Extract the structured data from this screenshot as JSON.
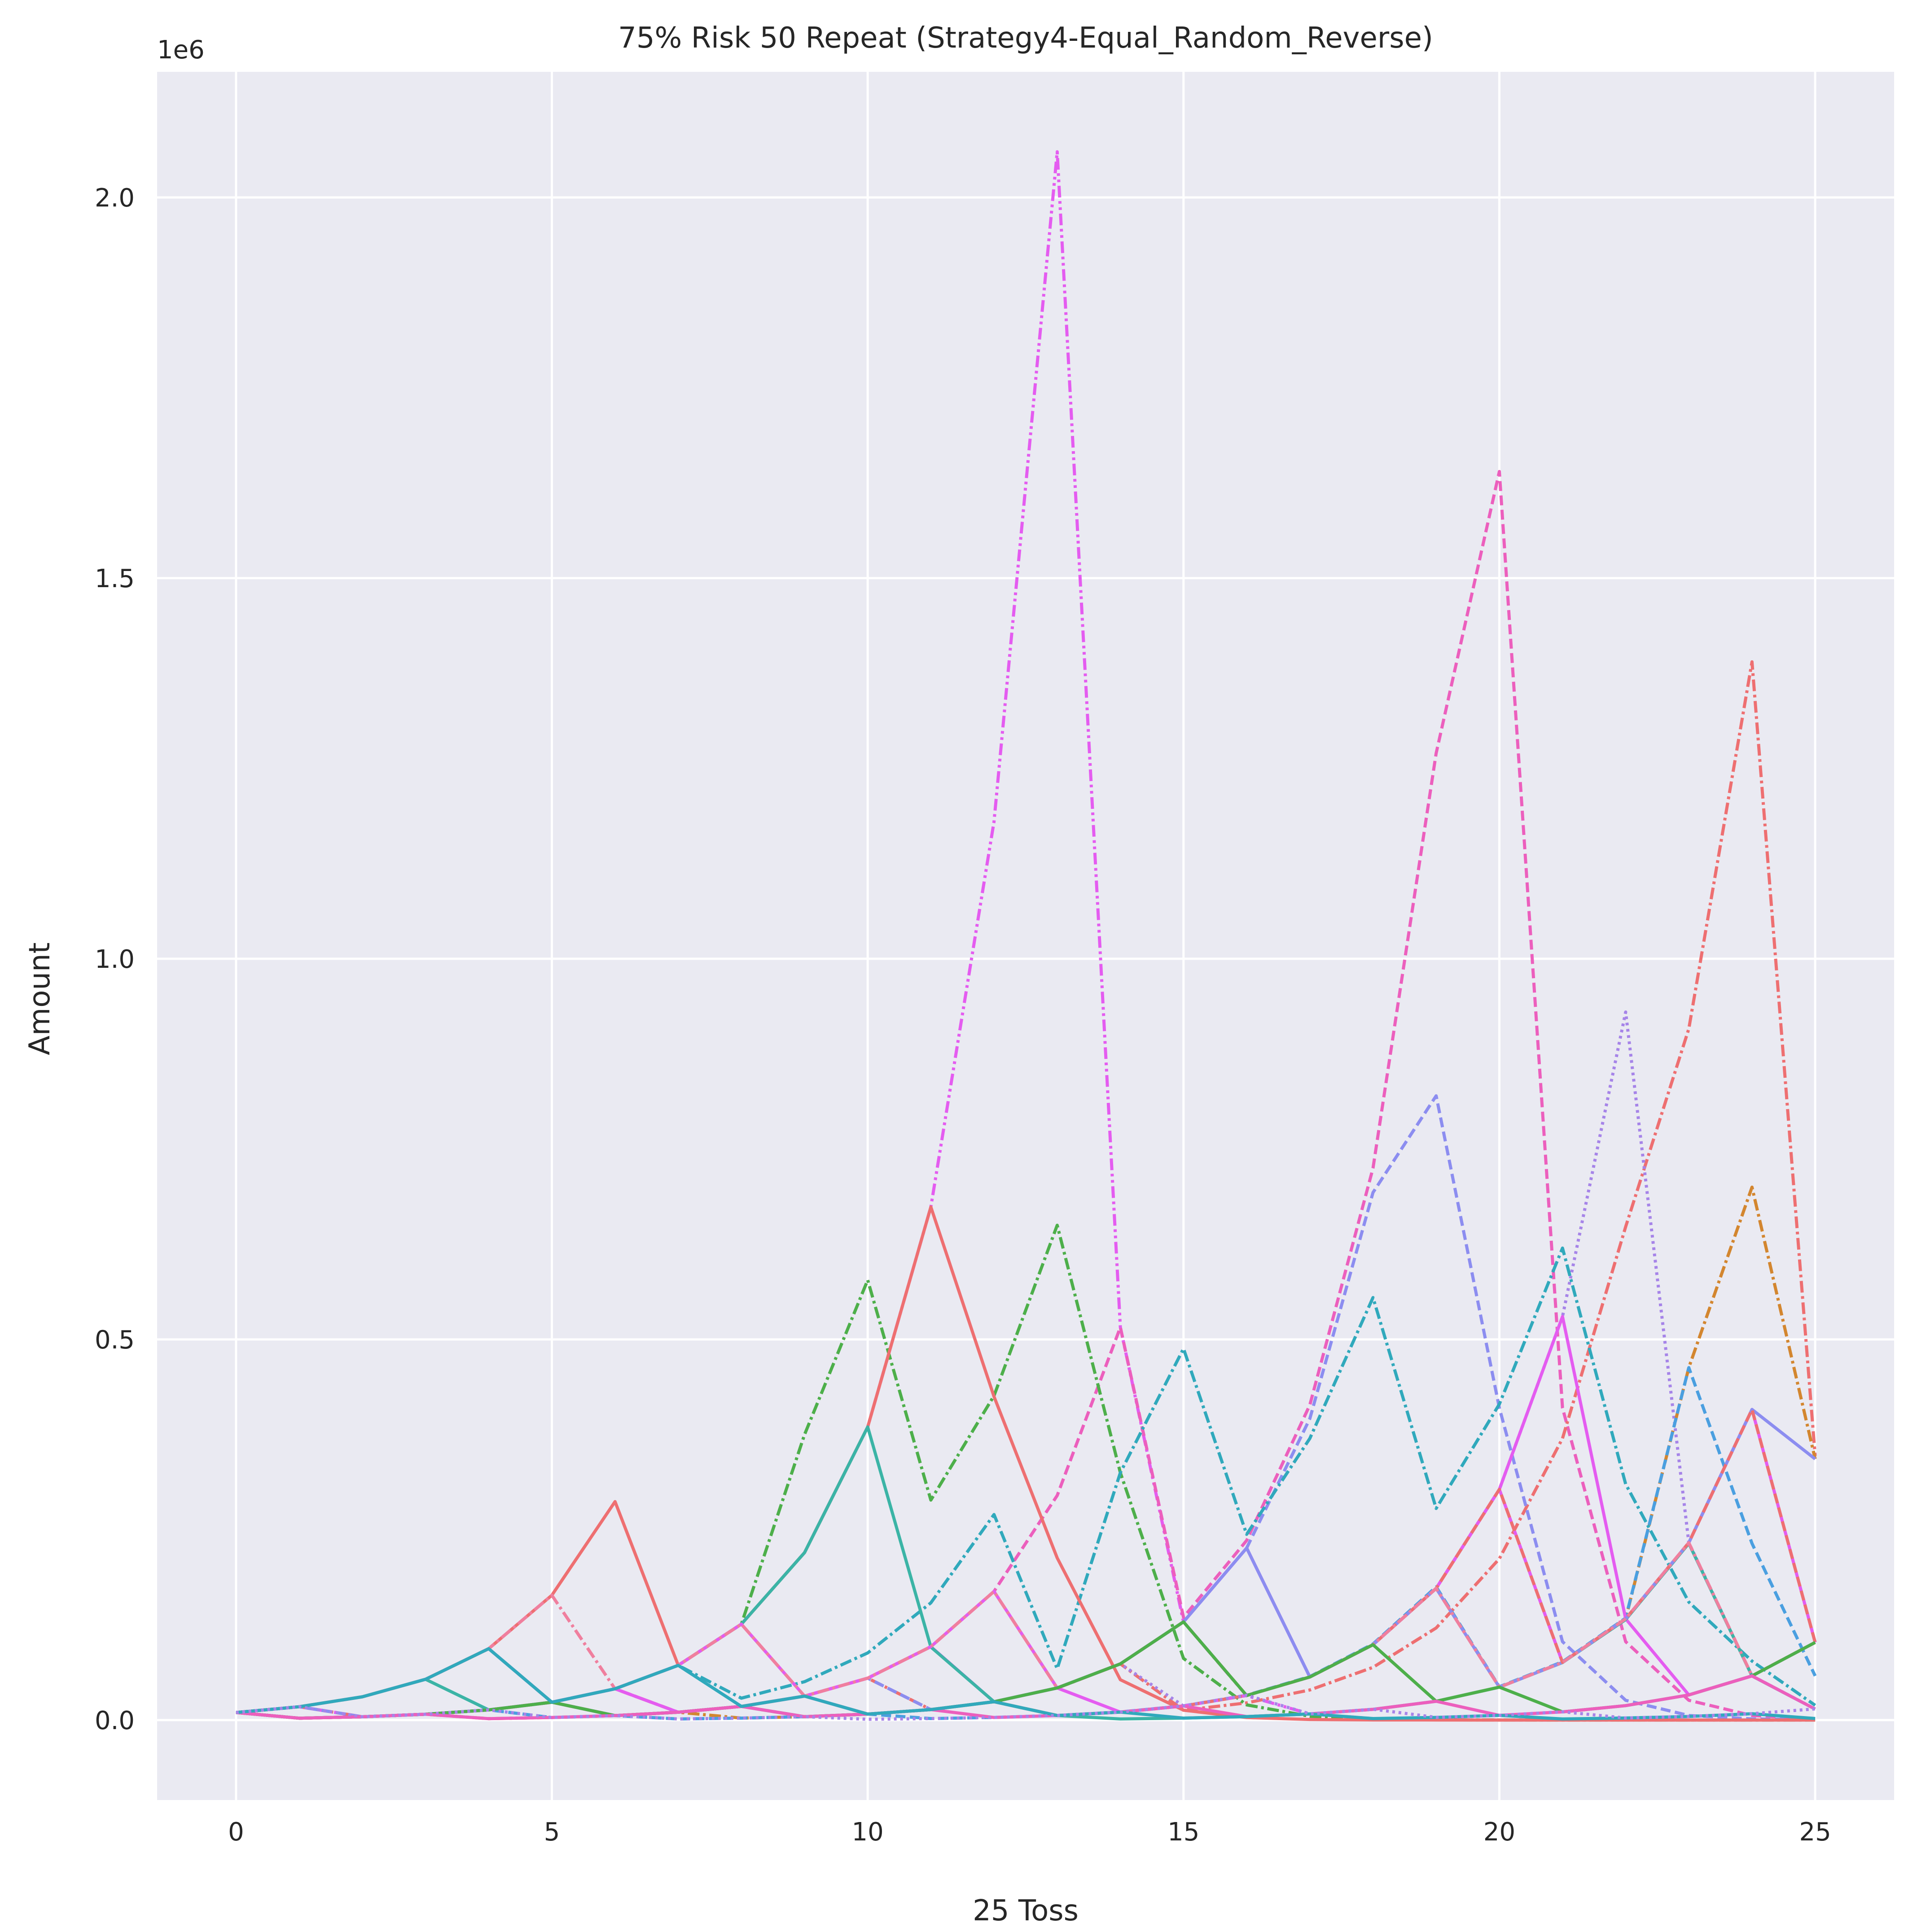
{
  "chart_data": {
    "type": "line",
    "title": "75% Risk 50 Repeat (Strategy4-Equal_Random_Reverse)",
    "xlabel": "25 Toss",
    "ylabel": "Amount",
    "y_offset_label": "1e6",
    "xlim": [
      -1.25,
      26.25
    ],
    "ylim": [
      -0.105,
      2.165
    ],
    "y_scale_factor": 1000000,
    "x_ticks": [
      0,
      5,
      10,
      15,
      20,
      25
    ],
    "x_tick_labels": [
      "0",
      "5",
      "10",
      "15",
      "20",
      "25"
    ],
    "y_ticks": [
      0,
      0.5,
      1.0,
      1.5,
      2.0
    ],
    "y_tick_labels": [
      "0.0",
      "0.5",
      "1.0",
      "1.5",
      "2.0"
    ],
    "grid": true,
    "legend": "none",
    "background_color": "#eaeaf2",
    "grid_color": "#ffffff",
    "x": [
      0,
      1,
      2,
      3,
      4,
      5,
      6,
      7,
      8,
      9,
      10,
      11,
      12,
      13,
      14,
      15,
      16,
      17,
      18,
      19,
      20,
      21,
      22,
      23,
      24,
      25
    ],
    "series": [
      {
        "color": "#e45cf0",
        "dash": "dashdotdot",
        "values": [
          0.01,
          0.0175,
          0.00438,
          0.00766,
          0.0134,
          0.0235,
          0.0411,
          0.0719,
          0.126,
          0.22,
          0.385,
          0.674,
          1.18,
          2.06,
          0.516,
          0.129,
          0.032,
          0.008,
          0.002,
          0.0005,
          0.0001,
          3e-05,
          1e-05,
          0,
          0,
          0
        ]
      },
      {
        "color": "#ec5fbd",
        "dash": "dashed",
        "values": [
          0.01,
          0.0025,
          0.00438,
          0.00766,
          0.0134,
          0.0235,
          0.0411,
          0.0103,
          0.018,
          0.0315,
          0.0551,
          0.0964,
          0.169,
          0.295,
          0.516,
          0.135,
          0.236,
          0.414,
          0.725,
          1.27,
          1.64,
          0.41,
          0.103,
          0.026,
          0.006,
          0.0016
        ]
      },
      {
        "color": "#ee6f71",
        "dash": "dashdot",
        "values": [
          0.01,
          0.0175,
          0.00438,
          0.00766,
          0.0134,
          0.0235,
          0.0411,
          0.0103,
          0.018,
          0.0315,
          0.0551,
          0.0138,
          0.0241,
          0.0422,
          0.0738,
          0.0129,
          0.0226,
          0.0396,
          0.0693,
          0.121,
          0.212,
          0.37,
          0.648,
          0.908,
          1.39,
          0.347
        ]
      },
      {
        "color": "#a684e8",
        "dash": "dotted",
        "values": [
          0.01,
          0.0025,
          0.00438,
          0.00766,
          0.0134,
          0.0235,
          0.0059,
          0.0103,
          0.018,
          0.0045,
          0.0079,
          0.0138,
          0.0241,
          0.0422,
          0.0738,
          0.0185,
          0.0323,
          0.0566,
          0.099,
          0.173,
          0.303,
          0.53,
          0.93,
          0.233,
          0.058,
          0.0146
        ]
      },
      {
        "color": "#8c8df0",
        "dash": "dashed",
        "values": [
          0.01,
          0.0175,
          0.00438,
          0.00766,
          0.0134,
          0.0235,
          0.0059,
          0.0103,
          0.018,
          0.0315,
          0.0551,
          0.0138,
          0.0241,
          0.0422,
          0.0738,
          0.129,
          0.226,
          0.396,
          0.693,
          0.82,
          0.41,
          0.103,
          0.026,
          0.006,
          0.0016,
          0.0004
        ]
      },
      {
        "color": "#d3862f",
        "dash": "dashdot",
        "values": [
          0.01,
          0.0025,
          0.00438,
          0.00766,
          0.0019,
          0.0034,
          0.0059,
          0.0103,
          0.0026,
          0.0045,
          0.0079,
          0.0138,
          0.0241,
          0.006,
          0.0105,
          0.0185,
          0.0323,
          0.0566,
          0.099,
          0.173,
          0.0433,
          0.0758,
          0.133,
          0.463,
          0.7,
          0.343
        ]
      },
      {
        "color": "#4daf4a",
        "dash": "dashdot",
        "values": [
          0.01,
          0.0175,
          0.0306,
          0.0536,
          0.0938,
          0.0235,
          0.0411,
          0.0719,
          0.126,
          0.375,
          0.578,
          0.289,
          0.426,
          0.65,
          0.325,
          0.081,
          0.02,
          0.005,
          0.0013,
          0.0003,
          0.0001,
          0,
          0,
          0,
          0,
          0
        ]
      },
      {
        "color": "#30a9bc",
        "dash": "dashdot",
        "values": [
          0.01,
          0.0025,
          0.00438,
          0.00766,
          0.0134,
          0.0235,
          0.0411,
          0.0719,
          0.0288,
          0.0504,
          0.0882,
          0.154,
          0.27,
          0.0675,
          0.325,
          0.488,
          0.244,
          0.37,
          0.555,
          0.278,
          0.415,
          0.62,
          0.31,
          0.155,
          0.0775,
          0.0194
        ]
      },
      {
        "color": "#4a9fe0",
        "dash": "dashed",
        "values": [
          0.01,
          0.0025,
          0.00438,
          0.00766,
          0.0134,
          0.0033,
          0.0059,
          0.0015,
          0.0026,
          0.0045,
          0.0079,
          0.002,
          0.0035,
          0.0061,
          0.0107,
          0.0187,
          0.0327,
          0.0572,
          0.1,
          0.175,
          0.0438,
          0.0766,
          0.134,
          0.463,
          0.232,
          0.058
        ]
      },
      {
        "color": "#e45cf0",
        "dash": "solid",
        "values": [
          0.01,
          0.0175,
          0.0306,
          0.0536,
          0.0938,
          0.0235,
          0.0411,
          0.0103,
          0.018,
          0.0315,
          0.0551,
          0.0964,
          0.0241,
          0.0422,
          0.0105,
          0.0185,
          0.0323,
          0.0566,
          0.099,
          0.173,
          0.303,
          0.53,
          0.133,
          0.033,
          0.058,
          0.102
        ]
      },
      {
        "color": "#ee6f71",
        "dash": "solid",
        "values": [
          0.01,
          0.0175,
          0.0306,
          0.0536,
          0.0938,
          0.164,
          0.287,
          0.072,
          0.126,
          0.22,
          0.385,
          0.674,
          0.425,
          0.213,
          0.053,
          0.013,
          0.0033,
          0.0008,
          0.0002,
          0.0001,
          0,
          0,
          0,
          0,
          0,
          0
        ]
      },
      {
        "color": "#3bb4a6",
        "dash": "solid",
        "values": [
          0.01,
          0.0175,
          0.0306,
          0.0536,
          0.0134,
          0.0235,
          0.0411,
          0.0719,
          0.126,
          0.22,
          0.385,
          0.096,
          0.0241,
          0.006,
          0.0015,
          0.0026,
          0.0046,
          0.0081,
          0.0141,
          0.0247,
          0.0432,
          0.0756,
          0.132,
          0.232,
          0.0579,
          0.0145
        ]
      },
      {
        "color": "#e45cf0",
        "dash": "solid",
        "values": [
          0.01,
          0.0025,
          0.00438,
          0.00766,
          0.0134,
          0.0235,
          0.0411,
          0.0719,
          0.126,
          0.0315,
          0.0551,
          0.0964,
          0.169,
          0.0422,
          0.0738,
          0.129,
          0.226,
          0.0566,
          0.099,
          0.173,
          0.303,
          0.0758,
          0.133,
          0.233,
          0.408,
          0.102
        ]
      },
      {
        "color": "#8c8df0",
        "dash": "solid",
        "values": [
          0.01,
          0.0025,
          0.00438,
          0.00766,
          0.0134,
          0.0235,
          0.0059,
          0.0103,
          0.018,
          0.0315,
          0.0079,
          0.0138,
          0.0241,
          0.0422,
          0.0738,
          0.129,
          0.226,
          0.0566,
          0.099,
          0.173,
          0.0433,
          0.0758,
          0.133,
          0.233,
          0.408,
          0.343
        ]
      },
      {
        "color": "#ee6f71",
        "dash": "dashed",
        "values": [
          0.01,
          0.0025,
          0.00438,
          0.00766,
          0.0134,
          0.0235,
          0.0059,
          0.0103,
          0.018,
          0.0315,
          0.0079,
          0.0138,
          0.0241,
          0.006,
          0.0105,
          0.0185,
          0.0323,
          0.0566,
          0.099,
          0.173,
          0.303,
          0.0758,
          0.133,
          0.233,
          0.408,
          0.102
        ]
      },
      {
        "color": "#f07f9e",
        "dash": "dashdot",
        "values": [
          0.01,
          0.0175,
          0.0306,
          0.0536,
          0.0938,
          0.164,
          0.041,
          0.0719,
          0.126,
          0.0315,
          0.0551,
          0.0964,
          0.169,
          0.042,
          0.0738,
          0.129,
          0.0323,
          0.0566,
          0.099,
          0.173,
          0.0433,
          0.0758,
          0.133,
          0.233,
          0.0582,
          0.102
        ]
      },
      {
        "color": "#4daf4a",
        "dash": "solid",
        "values": [
          0.01,
          0.0025,
          0.00438,
          0.00766,
          0.0134,
          0.0235,
          0.0059,
          0.0103,
          0.018,
          0.0045,
          0.0079,
          0.0138,
          0.0241,
          0.0422,
          0.0738,
          0.129,
          0.0323,
          0.0566,
          0.099,
          0.0247,
          0.0433,
          0.0108,
          0.019,
          0.033,
          0.058,
          0.102
        ]
      },
      {
        "color": "#ec5fbd",
        "dash": "solid",
        "values": [
          0.01,
          0.0025,
          0.00438,
          0.00766,
          0.0019,
          0.0034,
          0.0059,
          0.0103,
          0.018,
          0.0045,
          0.0079,
          0.0138,
          0.0034,
          0.006,
          0.0105,
          0.0185,
          0.0046,
          0.0081,
          0.0141,
          0.0247,
          0.0062,
          0.0108,
          0.019,
          0.033,
          0.058,
          0.0145
        ]
      },
      {
        "color": "#30a9bc",
        "dash": "solid",
        "values": [
          0.01,
          0.0175,
          0.0306,
          0.0536,
          0.0938,
          0.0235,
          0.0411,
          0.0719,
          0.018,
          0.0315,
          0.0079,
          0.0138,
          0.0241,
          0.006,
          0.0105,
          0.0026,
          0.0046,
          0.0081,
          0.002,
          0.0035,
          0.0062,
          0.0015,
          0.0027,
          0.0047,
          0.0083,
          0.0021
        ]
      },
      {
        "color": "#a684e8",
        "dash": "dotted",
        "values": [
          0.01,
          0.0175,
          0.0044,
          0.0077,
          0.0134,
          0.0034,
          0.0059,
          0.0015,
          0.0026,
          0.0045,
          0.0011,
          0.002,
          0.0035,
          0.0061,
          0.0107,
          0.0187,
          0.0327,
          0.0082,
          0.0143,
          0.0036,
          0.0062,
          0.0109,
          0.0027,
          0.0048,
          0.0084,
          0.0147
        ]
      }
    ]
  }
}
